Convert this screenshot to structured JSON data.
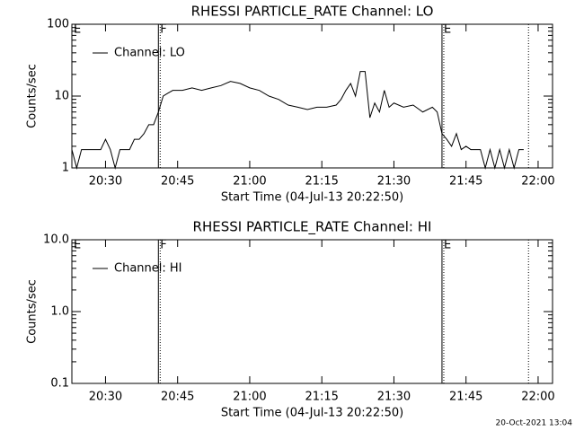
{
  "chart_data": [
    {
      "type": "line",
      "title": "RHESSI PARTICLE_RATE Channel: LO",
      "x_label": "Start Time (04-Jul-13 20:22:50)",
      "y_label": "Counts/sec",
      "log_y": true,
      "legend": "top-left",
      "xlim": [
        "20:23",
        "22:03"
      ],
      "xticks": [
        "20:30",
        "20:45",
        "21:00",
        "21:15",
        "21:30",
        "21:45",
        "22:00"
      ],
      "ylim": [
        1,
        100
      ],
      "yticks": [
        1,
        10,
        100
      ],
      "markers": [
        {
          "x": "20:23",
          "label": "E"
        },
        {
          "x": "20:41",
          "label": "F"
        },
        {
          "x": "21:40",
          "label": "E"
        }
      ],
      "dotted_lines": [
        "21:58"
      ],
      "series": [
        {
          "name": "Channel: LO",
          "color": "#000000",
          "x": [
            "20:23",
            "20:24",
            "20:25",
            "20:26",
            "20:27",
            "20:28",
            "20:29",
            "20:30",
            "20:31",
            "20:32",
            "20:33",
            "20:34",
            "20:35",
            "20:36",
            "20:37",
            "20:38",
            "20:39",
            "20:40",
            "20:41",
            "20:42",
            "20:43",
            "20:44",
            "20:46",
            "20:48",
            "20:50",
            "20:52",
            "20:54",
            "20:56",
            "20:58",
            "21:00",
            "21:02",
            "21:04",
            "21:06",
            "21:08",
            "21:10",
            "21:12",
            "21:14",
            "21:16",
            "21:18",
            "21:19",
            "21:20",
            "21:21",
            "21:22",
            "21:23",
            "21:24",
            "21:25",
            "21:26",
            "21:27",
            "21:28",
            "21:29",
            "21:30",
            "21:32",
            "21:34",
            "21:36",
            "21:38",
            "21:39",
            "21:40",
            "21:41",
            "21:42",
            "21:43",
            "21:44",
            "21:45",
            "21:46",
            "21:48",
            "21:49",
            "21:50",
            "21:51",
            "21:52",
            "21:53",
            "21:54",
            "21:55",
            "21:56",
            "21:57"
          ],
          "values": [
            1.8,
            1,
            1.8,
            1.8,
            1.8,
            1.8,
            1.8,
            2.5,
            1.8,
            1,
            1.8,
            1.8,
            1.8,
            2.5,
            2.5,
            3,
            4,
            4,
            6,
            10,
            11,
            12,
            12,
            13,
            12,
            13,
            14,
            16,
            15,
            13,
            12,
            10,
            9,
            7.5,
            7,
            6.5,
            7,
            7,
            7.5,
            9,
            12,
            15,
            10,
            22,
            22,
            5,
            8,
            6,
            12,
            7,
            8,
            7,
            7.5,
            6,
            7,
            6,
            3,
            2.5,
            2,
            3,
            1.8,
            2,
            1.8,
            1.8,
            1,
            1.8,
            1,
            1.8,
            1,
            1.8,
            1,
            1.8,
            1.8
          ]
        }
      ]
    },
    {
      "type": "line",
      "title": "RHESSI PARTICLE_RATE Channel: HI",
      "x_label": "Start Time (04-Jul-13 20:22:50)",
      "y_label": "Counts/sec",
      "log_y": true,
      "legend": "top-left",
      "xlim": [
        "20:23",
        "22:03"
      ],
      "xticks": [
        "20:30",
        "20:45",
        "21:00",
        "21:15",
        "21:30",
        "21:45",
        "22:00"
      ],
      "ylim": [
        0.1,
        10
      ],
      "yticks": [
        0.1,
        {
          "value": 1,
          "label": "1.0"
        },
        {
          "value": 10,
          "label": "10.0"
        }
      ],
      "markers": [
        {
          "x": "20:23",
          "label": "E"
        },
        {
          "x": "20:41",
          "label": "F"
        },
        {
          "x": "21:40",
          "label": "E"
        }
      ],
      "dotted_lines": [
        "21:58"
      ],
      "series": [
        {
          "name": "Channel: HI",
          "color": "#000000",
          "x": [],
          "values": []
        }
      ]
    }
  ],
  "footer": "20-Oct-2021 13:04"
}
